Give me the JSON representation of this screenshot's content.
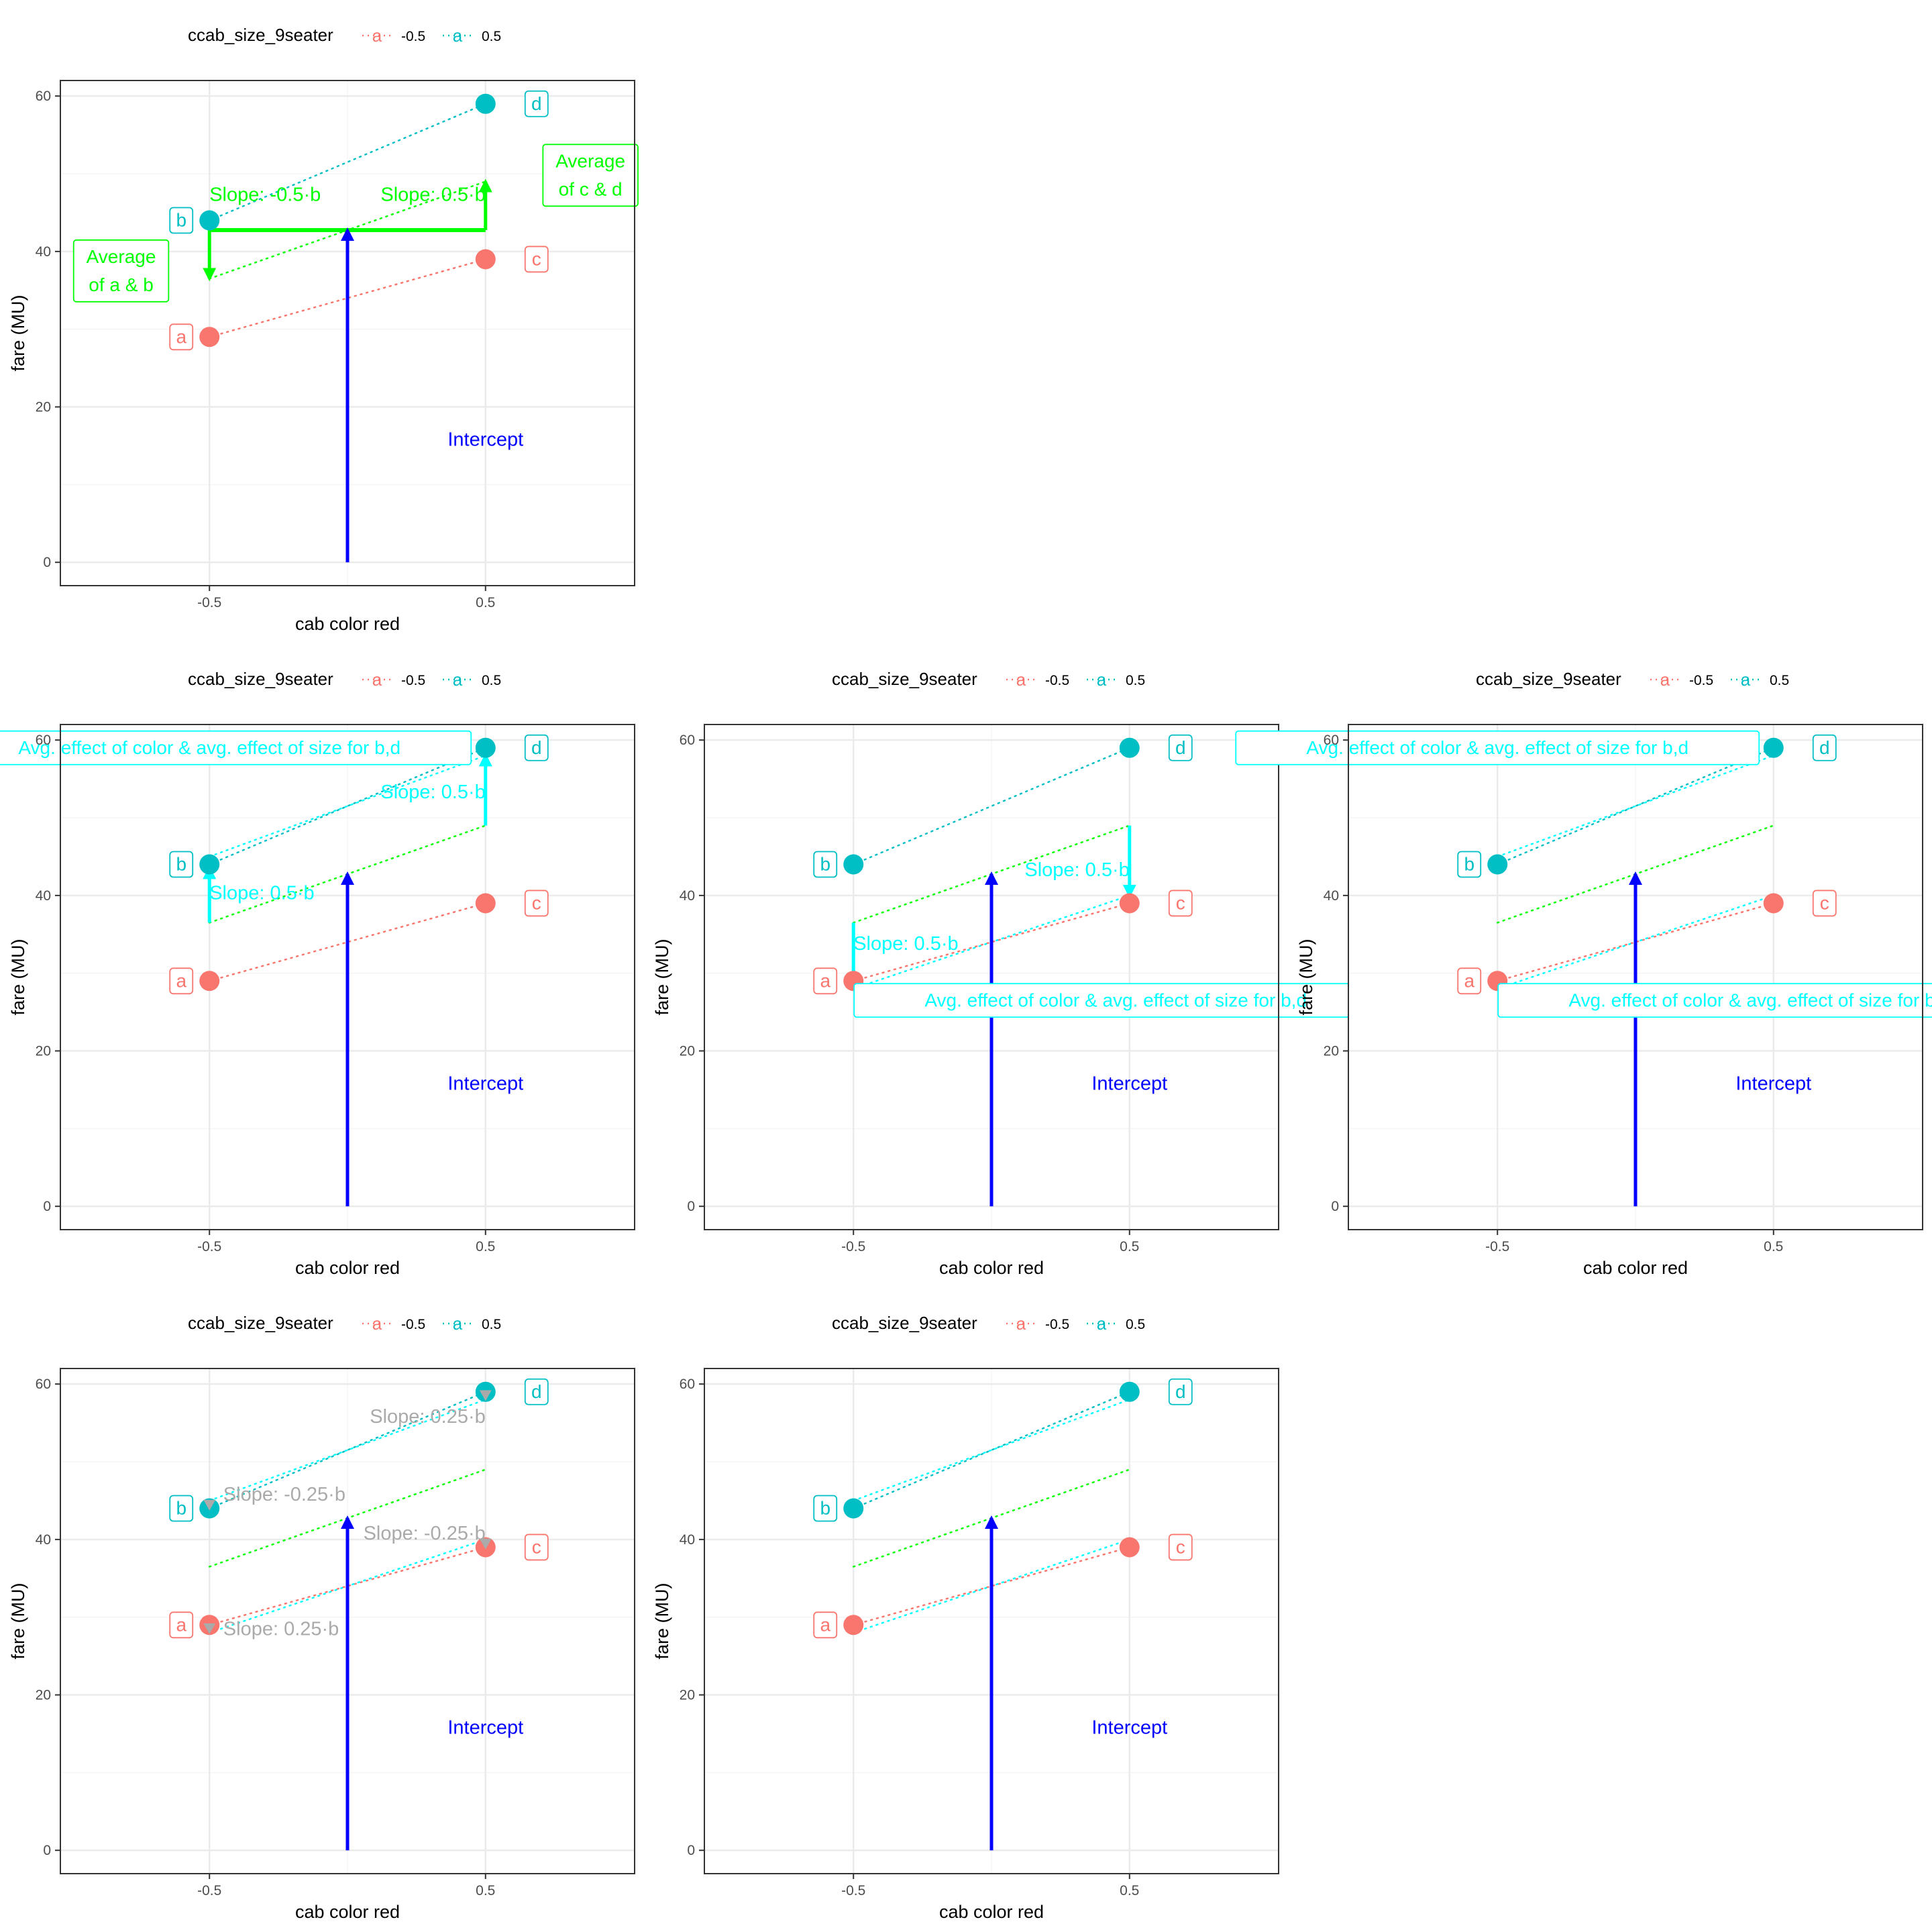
{
  "colors": {
    "red": "#F8766D",
    "teal": "#00BFC4",
    "green": "#00FF00",
    "cyan": "#00FFFF",
    "blue": "#0000FF",
    "grey": "#AAAAAA",
    "grid_major": "#EBEBEB",
    "grid_minor": "#F5F5F5",
    "panel_border": "#333333",
    "tick_text": "#4D4D4D"
  },
  "chart_data": [
    {
      "type": "scatter",
      "panel": 1,
      "legend": {
        "title": "ccab_size_9seater",
        "key_glyph": "a",
        "entries": [
          "-0.5",
          "0.5"
        ],
        "position": "top"
      },
      "xlabel": "cab color red",
      "ylabel": "fare (MU)",
      "x_ticks": [
        "-0.5",
        "0.5"
      ],
      "y_ticks": [
        "0",
        "20",
        "40",
        "60"
      ],
      "xlim": [
        -1.04,
        1.04
      ],
      "ylim": [
        -3,
        62
      ],
      "points": [
        {
          "x": -0.5,
          "y": 29,
          "label": "a",
          "group": "-0.5"
        },
        {
          "x": -0.5,
          "y": 44,
          "label": "b",
          "group": "0.5"
        },
        {
          "x": 0.5,
          "y": 39,
          "label": "c",
          "group": "-0.5"
        },
        {
          "x": 0.5,
          "y": 59,
          "label": "d",
          "group": "0.5"
        }
      ],
      "lines": [
        {
          "x": [
            -0.5,
            0.5
          ],
          "y": [
            29,
            39
          ],
          "color": "red"
        },
        {
          "x": [
            -0.5,
            0.5
          ],
          "y": [
            44,
            59
          ],
          "color": "teal"
        },
        {
          "x": [
            -0.5,
            0.5
          ],
          "y": [
            36.5,
            49
          ],
          "color": "green"
        }
      ],
      "arrows": [
        {
          "x": [
            0,
            0
          ],
          "y": [
            0,
            42.75
          ],
          "color": "blue"
        },
        {
          "x": [
            -0.5,
            -0.5
          ],
          "y": [
            42.75,
            36.5
          ],
          "color": "green"
        },
        {
          "x": [
            0.5,
            0.5
          ],
          "y": [
            42.75,
            49
          ],
          "color": "green"
        }
      ],
      "segments": [
        {
          "x": [
            -0.5,
            0.5
          ],
          "y": [
            42.75,
            42.75
          ],
          "color": "green"
        }
      ],
      "texts": [
        {
          "x": 0.5,
          "y": 15,
          "text": "Intercept",
          "color": "blue"
        },
        {
          "x": -0.5,
          "y": 46.5,
          "text": "Slope: -0.5·b",
          "color": "green",
          "anchor": "start"
        },
        {
          "x": 0.5,
          "y": 46.5,
          "text": "Slope: 0.5·b",
          "color": "green",
          "anchor": "end"
        }
      ],
      "boxes": [
        {
          "x": -0.82,
          "y": 37.5,
          "lines": [
            "Average",
            "of a & b"
          ],
          "color": "green"
        },
        {
          "x": 0.88,
          "y": 49.8,
          "lines": [
            "Average",
            "of c & d"
          ],
          "color": "green"
        }
      ]
    },
    {
      "type": "scatter",
      "panel": 2,
      "legend": {
        "title": "ccab_size_9seater",
        "key_glyph": "a",
        "entries": [
          "-0.5",
          "0.5"
        ],
        "position": "top"
      },
      "xlabel": "cab color red",
      "ylabel": "fare (MU)",
      "x_ticks": [
        "-0.5",
        "0.5"
      ],
      "y_ticks": [
        "0",
        "20",
        "40",
        "60"
      ],
      "xlim": [
        -1.04,
        1.04
      ],
      "ylim": [
        -3,
        62
      ],
      "points": [
        {
          "x": -0.5,
          "y": 29,
          "label": "a",
          "group": "-0.5"
        },
        {
          "x": -0.5,
          "y": 44,
          "label": "b",
          "group": "0.5"
        },
        {
          "x": 0.5,
          "y": 39,
          "label": "c",
          "group": "-0.5"
        },
        {
          "x": 0.5,
          "y": 59,
          "label": "d",
          "group": "0.5"
        }
      ],
      "lines": [
        {
          "x": [
            -0.5,
            0.5
          ],
          "y": [
            29,
            39
          ],
          "color": "red"
        },
        {
          "x": [
            -0.5,
            0.5
          ],
          "y": [
            44,
            59
          ],
          "color": "teal"
        },
        {
          "x": [
            -0.5,
            0.5
          ],
          "y": [
            36.5,
            49
          ],
          "color": "green"
        },
        {
          "x": [
            -0.5,
            0.5
          ],
          "y": [
            45,
            58
          ],
          "color": "cyan"
        }
      ],
      "arrows": [
        {
          "x": [
            0,
            0
          ],
          "y": [
            0,
            42.75
          ],
          "color": "blue"
        },
        {
          "x": [
            -0.5,
            -0.5
          ],
          "y": [
            36.5,
            43.5
          ],
          "color": "cyan"
        },
        {
          "x": [
            0.5,
            0.5
          ],
          "y": [
            49,
            58
          ],
          "color": "cyan"
        }
      ],
      "segments": [],
      "texts": [
        {
          "x": 0.5,
          "y": 15,
          "text": "Intercept",
          "color": "blue"
        },
        {
          "x": -0.5,
          "y": 39.5,
          "text": "Slope: 0.5·b",
          "color": "cyan",
          "anchor": "start"
        },
        {
          "x": 0.5,
          "y": 52.5,
          "text": "Slope: 0.5·b",
          "color": "cyan",
          "anchor": "end"
        }
      ],
      "boxes": [
        {
          "x": -0.5,
          "y": 59,
          "lines": [
            "Avg. effect of color & avg. effect of size for b,d"
          ],
          "color": "cyan"
        }
      ]
    },
    {
      "type": "scatter",
      "panel": 3,
      "legend": {
        "title": "ccab_size_9seater",
        "key_glyph": "a",
        "entries": [
          "-0.5",
          "0.5"
        ],
        "position": "top"
      },
      "xlabel": "cab color red",
      "ylabel": "fare (MU)",
      "x_ticks": [
        "-0.5",
        "0.5"
      ],
      "y_ticks": [
        "0",
        "20",
        "40",
        "60"
      ],
      "xlim": [
        -1.04,
        1.04
      ],
      "ylim": [
        -3,
        62
      ],
      "points": [
        {
          "x": -0.5,
          "y": 29,
          "label": "a",
          "group": "-0.5"
        },
        {
          "x": -0.5,
          "y": 44,
          "label": "b",
          "group": "0.5"
        },
        {
          "x": 0.5,
          "y": 39,
          "label": "c",
          "group": "-0.5"
        },
        {
          "x": 0.5,
          "y": 59,
          "label": "d",
          "group": "0.5"
        }
      ],
      "lines": [
        {
          "x": [
            -0.5,
            0.5
          ],
          "y": [
            29,
            39
          ],
          "color": "red"
        },
        {
          "x": [
            -0.5,
            0.5
          ],
          "y": [
            44,
            59
          ],
          "color": "teal"
        },
        {
          "x": [
            -0.5,
            0.5
          ],
          "y": [
            36.5,
            49
          ],
          "color": "green"
        },
        {
          "x": [
            -0.5,
            0.5
          ],
          "y": [
            28,
            40
          ],
          "color": "cyan"
        }
      ],
      "arrows": [
        {
          "x": [
            0,
            0
          ],
          "y": [
            0,
            42.75
          ],
          "color": "blue"
        },
        {
          "x": [
            -0.5,
            -0.5
          ],
          "y": [
            36.5,
            28
          ],
          "color": "cyan"
        },
        {
          "x": [
            0.5,
            0.5
          ],
          "y": [
            49,
            40
          ],
          "color": "cyan"
        }
      ],
      "segments": [],
      "texts": [
        {
          "x": 0.5,
          "y": 15,
          "text": "Intercept",
          "color": "blue"
        },
        {
          "x": -0.5,
          "y": 33,
          "text": "Slope: 0.5·b",
          "color": "cyan",
          "anchor": "start"
        },
        {
          "x": 0.5,
          "y": 42.5,
          "text": "Slope: 0.5·b",
          "color": "cyan",
          "anchor": "end"
        }
      ],
      "boxes": [
        {
          "x": 0.45,
          "y": 26.5,
          "lines": [
            "Avg. effect of color & avg. effect of size for b,d"
          ],
          "color": "cyan"
        }
      ]
    },
    {
      "type": "scatter",
      "panel": 4,
      "legend": {
        "title": "ccab_size_9seater",
        "key_glyph": "a",
        "entries": [
          "-0.5",
          "0.5"
        ],
        "position": "top"
      },
      "xlabel": "cab color red",
      "ylabel": "fare (MU)",
      "x_ticks": [
        "-0.5",
        "0.5"
      ],
      "y_ticks": [
        "0",
        "20",
        "40",
        "60"
      ],
      "xlim": [
        -1.04,
        1.04
      ],
      "ylim": [
        -3,
        62
      ],
      "points": [
        {
          "x": -0.5,
          "y": 29,
          "label": "a",
          "group": "-0.5"
        },
        {
          "x": -0.5,
          "y": 44,
          "label": "b",
          "group": "0.5"
        },
        {
          "x": 0.5,
          "y": 39,
          "label": "c",
          "group": "-0.5"
        },
        {
          "x": 0.5,
          "y": 59,
          "label": "d",
          "group": "0.5"
        }
      ],
      "lines": [
        {
          "x": [
            -0.5,
            0.5
          ],
          "y": [
            29,
            39
          ],
          "color": "red"
        },
        {
          "x": [
            -0.5,
            0.5
          ],
          "y": [
            44,
            59
          ],
          "color": "teal"
        },
        {
          "x": [
            -0.5,
            0.5
          ],
          "y": [
            36.5,
            49
          ],
          "color": "green"
        },
        {
          "x": [
            -0.5,
            0.5
          ],
          "y": [
            45,
            58
          ],
          "color": "cyan"
        },
        {
          "x": [
            -0.5,
            0.5
          ],
          "y": [
            28,
            40
          ],
          "color": "cyan"
        }
      ],
      "arrows": [
        {
          "x": [
            0,
            0
          ],
          "y": [
            0,
            42.75
          ],
          "color": "blue"
        }
      ],
      "segments": [],
      "texts": [
        {
          "x": 0.5,
          "y": 15,
          "text": "Intercept",
          "color": "blue"
        }
      ],
      "boxes": [
        {
          "x": -0.5,
          "y": 59,
          "lines": [
            "Avg. effect of color & avg. effect of size for b,d"
          ],
          "color": "cyan"
        },
        {
          "x": 0.45,
          "y": 26.5,
          "lines": [
            "Avg. effect of color & avg. effect of size for b,d"
          ],
          "color": "cyan"
        }
      ]
    },
    {
      "type": "scatter",
      "panel": 5,
      "legend": {
        "title": "ccab_size_9seater",
        "key_glyph": "a",
        "entries": [
          "-0.5",
          "0.5"
        ],
        "position": "top"
      },
      "xlabel": "cab color red",
      "ylabel": "fare (MU)",
      "x_ticks": [
        "-0.5",
        "0.5"
      ],
      "y_ticks": [
        "0",
        "20",
        "40",
        "60"
      ],
      "xlim": [
        -1.04,
        1.04
      ],
      "ylim": [
        -3,
        62
      ],
      "points": [
        {
          "x": -0.5,
          "y": 29,
          "label": "a",
          "group": "-0.5"
        },
        {
          "x": -0.5,
          "y": 44,
          "label": "b",
          "group": "0.5"
        },
        {
          "x": 0.5,
          "y": 39,
          "label": "c",
          "group": "-0.5"
        },
        {
          "x": 0.5,
          "y": 59,
          "label": "d",
          "group": "0.5"
        }
      ],
      "lines": [
        {
          "x": [
            -0.5,
            0.5
          ],
          "y": [
            29,
            39
          ],
          "color": "red"
        },
        {
          "x": [
            -0.5,
            0.5
          ],
          "y": [
            44,
            59
          ],
          "color": "teal"
        },
        {
          "x": [
            -0.5,
            0.5
          ],
          "y": [
            36.5,
            49
          ],
          "color": "green"
        },
        {
          "x": [
            -0.5,
            0.5
          ],
          "y": [
            45,
            58
          ],
          "color": "cyan"
        },
        {
          "x": [
            -0.5,
            0.5
          ],
          "y": [
            28,
            40
          ],
          "color": "cyan"
        }
      ],
      "arrows": [
        {
          "x": [
            0,
            0
          ],
          "y": [
            0,
            42.75
          ],
          "color": "blue"
        }
      ],
      "segments": [],
      "markers": [
        {
          "x": -0.5,
          "y": 44.5,
          "color": "grey"
        },
        {
          "x": -0.5,
          "y": 28.6,
          "color": "grey"
        },
        {
          "x": 0.5,
          "y": 58.6,
          "color": "grey"
        },
        {
          "x": 0.5,
          "y": 39.5,
          "color": "grey"
        }
      ],
      "texts": [
        {
          "x": 0.5,
          "y": 15,
          "text": "Intercept",
          "color": "blue"
        },
        {
          "x": -0.45,
          "y": 45,
          "text": "Slope: -0.25·b",
          "color": "grey",
          "anchor": "start"
        },
        {
          "x": -0.45,
          "y": 27.7,
          "text": "Slope: 0.25·b",
          "color": "grey",
          "anchor": "start"
        },
        {
          "x": 0.5,
          "y": 55,
          "text": "Slope: 0.25·b",
          "color": "grey",
          "anchor": "end"
        },
        {
          "x": 0.5,
          "y": 40,
          "text": "Slope: -0.25·b",
          "color": "grey",
          "anchor": "end"
        }
      ],
      "boxes": []
    },
    {
      "type": "scatter",
      "panel": 6,
      "legend": {
        "title": "ccab_size_9seater",
        "key_glyph": "a",
        "entries": [
          "-0.5",
          "0.5"
        ],
        "position": "top"
      },
      "xlabel": "cab color red",
      "ylabel": "fare (MU)",
      "x_ticks": [
        "-0.5",
        "0.5"
      ],
      "y_ticks": [
        "0",
        "20",
        "40",
        "60"
      ],
      "xlim": [
        -1.04,
        1.04
      ],
      "ylim": [
        -3,
        62
      ],
      "points": [
        {
          "x": -0.5,
          "y": 29,
          "label": "a",
          "group": "-0.5"
        },
        {
          "x": -0.5,
          "y": 44,
          "label": "b",
          "group": "0.5"
        },
        {
          "x": 0.5,
          "y": 39,
          "label": "c",
          "group": "-0.5"
        },
        {
          "x": 0.5,
          "y": 59,
          "label": "d",
          "group": "0.5"
        }
      ],
      "lines": [
        {
          "x": [
            -0.5,
            0.5
          ],
          "y": [
            29,
            39
          ],
          "color": "red"
        },
        {
          "x": [
            -0.5,
            0.5
          ],
          "y": [
            44,
            59
          ],
          "color": "teal"
        },
        {
          "x": [
            -0.5,
            0.5
          ],
          "y": [
            36.5,
            49
          ],
          "color": "green"
        },
        {
          "x": [
            -0.5,
            0.5
          ],
          "y": [
            45,
            58
          ],
          "color": "cyan"
        },
        {
          "x": [
            -0.5,
            0.5
          ],
          "y": [
            28,
            40
          ],
          "color": "cyan"
        }
      ],
      "arrows": [
        {
          "x": [
            0,
            0
          ],
          "y": [
            0,
            42.75
          ],
          "color": "blue"
        }
      ],
      "segments": [],
      "texts": [
        {
          "x": 0.5,
          "y": 15,
          "text": "Intercept",
          "color": "blue"
        }
      ],
      "boxes": []
    }
  ]
}
